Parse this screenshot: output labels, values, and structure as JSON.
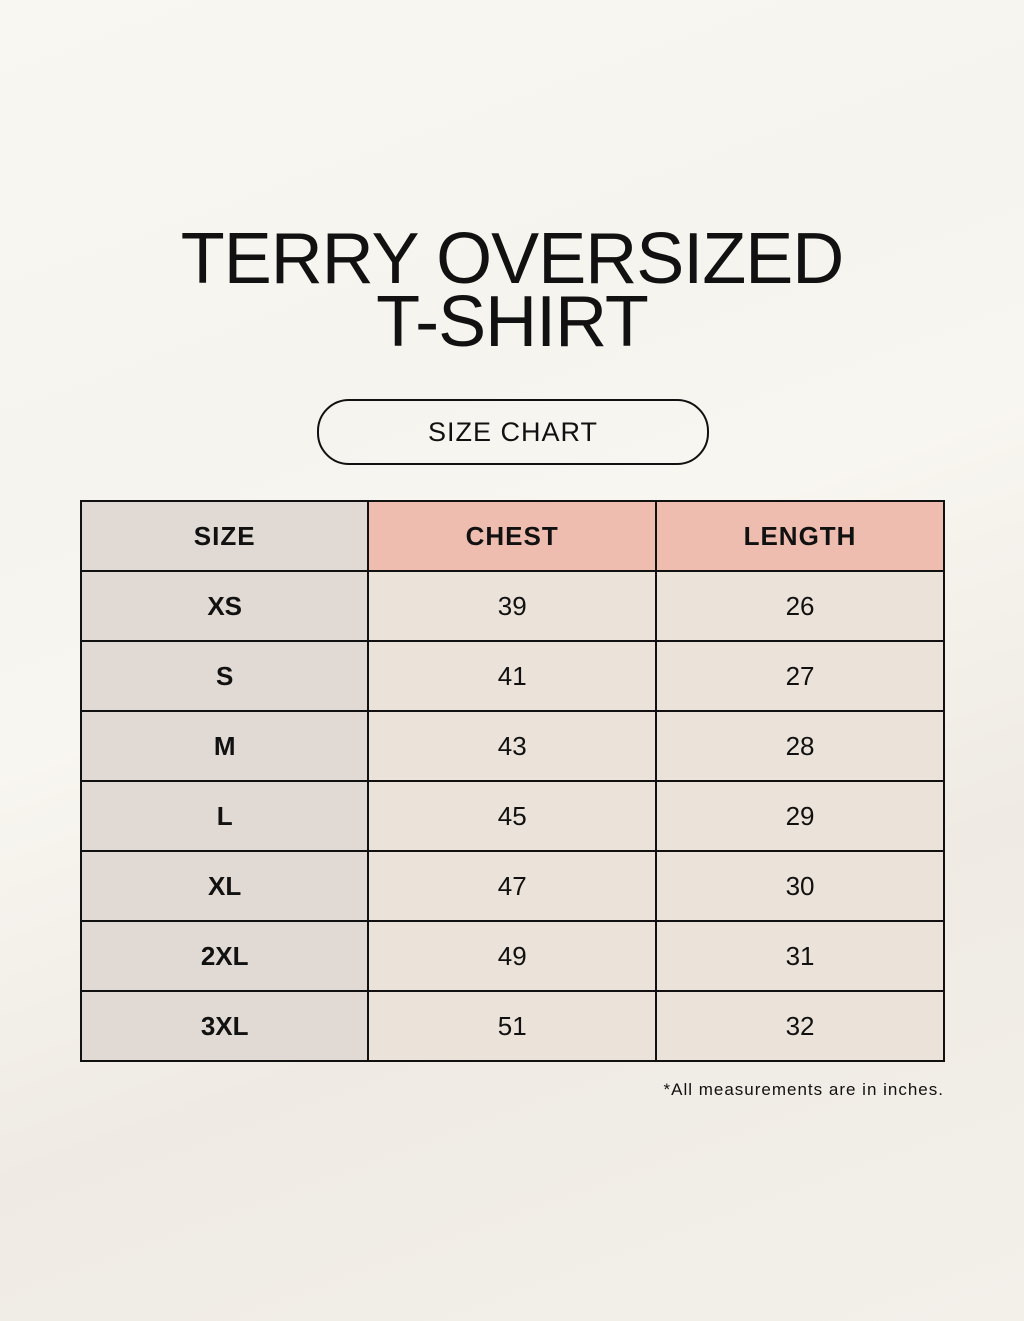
{
  "title": {
    "line1": "TERRY OVERSIZED",
    "line2": "T-SHIRT"
  },
  "subtitle": "SIZE CHART",
  "table": {
    "headers": [
      "SIZE",
      "CHEST",
      "LENGTH"
    ],
    "rows": [
      [
        "XS",
        "39",
        "26"
      ],
      [
        "S",
        "41",
        "27"
      ],
      [
        "M",
        "43",
        "28"
      ],
      [
        "L",
        "45",
        "29"
      ],
      [
        "XL",
        "47",
        "30"
      ],
      [
        "2XL",
        "49",
        "31"
      ],
      [
        "3XL",
        "51",
        "32"
      ]
    ]
  },
  "note": "*All measurements are in inches.",
  "colors": {
    "size_column": "#e0d9d4",
    "header_accent": "#efbdb0",
    "value_cells": "#ebe3d9"
  }
}
